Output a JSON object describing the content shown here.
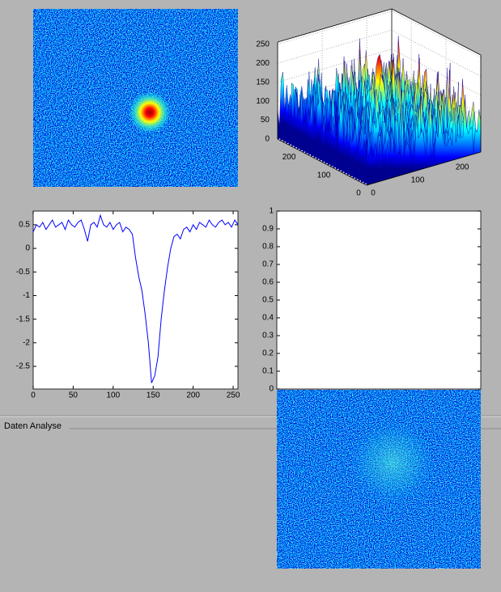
{
  "chart_data": [
    {
      "type": "surface",
      "xlim": [
        0,
        256
      ],
      "ylim": [
        0,
        256
      ],
      "zlim": [
        0,
        256
      ],
      "xticks": [
        0,
        100,
        200
      ],
      "yticks": [
        0,
        100,
        200
      ],
      "zticks": [
        0,
        50,
        100,
        150,
        200,
        250
      ],
      "grid": true
    },
    {
      "type": "line",
      "x": [
        0,
        4,
        8,
        12,
        16,
        20,
        24,
        28,
        32,
        36,
        40,
        44,
        48,
        52,
        56,
        60,
        64,
        68,
        72,
        76,
        80,
        84,
        88,
        92,
        96,
        100,
        104,
        108,
        112,
        116,
        120,
        124,
        128,
        132,
        136,
        140,
        144,
        148,
        152,
        156,
        160,
        164,
        168,
        172,
        176,
        180,
        184,
        188,
        192,
        196,
        200,
        204,
        208,
        212,
        216,
        220,
        224,
        228,
        232,
        236,
        240,
        244,
        248,
        252,
        256
      ],
      "series": [
        {
          "color": "#0000ff",
          "values": [
            0.35,
            0.5,
            0.45,
            0.55,
            0.4,
            0.5,
            0.6,
            0.45,
            0.5,
            0.55,
            0.4,
            0.6,
            0.5,
            0.45,
            0.55,
            0.6,
            0.4,
            0.15,
            0.5,
            0.55,
            0.45,
            0.7,
            0.5,
            0.45,
            0.55,
            0.4,
            0.5,
            0.55,
            0.35,
            0.45,
            0.4,
            0.3,
            -0.2,
            -0.6,
            -0.9,
            -1.4,
            -2.0,
            -2.85,
            -2.7,
            -2.3,
            -1.5,
            -0.9,
            -0.4,
            0.0,
            0.25,
            0.3,
            0.2,
            0.4,
            0.45,
            0.35,
            0.5,
            0.4,
            0.55,
            0.5,
            0.45,
            0.6,
            0.5,
            0.45,
            0.55,
            0.6,
            0.5,
            0.55,
            0.45,
            0.6,
            0.5
          ]
        }
      ],
      "xlim": [
        0,
        256
      ],
      "ylim": [
        -2.98,
        0.79
      ],
      "xticks": [
        0,
        50,
        100,
        150,
        200,
        250
      ],
      "yticks": [
        0.5,
        0,
        -0.5,
        -1,
        -1.5,
        -2,
        -2.5
      ]
    },
    {
      "type": "empty",
      "ylim": [
        0,
        1
      ],
      "yticks": [
        0,
        0.1,
        0.2,
        0.3,
        0.4,
        0.5,
        0.6,
        0.7,
        0.8,
        0.9,
        1
      ]
    }
  ],
  "panel": {
    "title": "Daten Analyse"
  }
}
